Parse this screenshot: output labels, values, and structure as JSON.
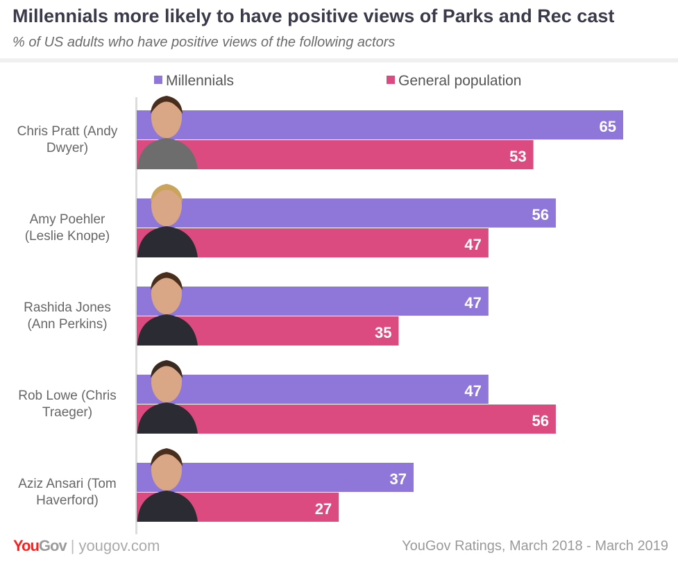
{
  "header": {
    "title": "Millennials more likely to have positive views of Parks and Rec cast",
    "subtitle": "% of US adults who have positive views of the following actors"
  },
  "footer": {
    "logo_you": "You",
    "logo_gov": "Gov",
    "url": "yougov.com",
    "source": "YouGov Ratings, March 2018 - March 2019"
  },
  "chart_data": {
    "type": "bar",
    "orientation": "horizontal",
    "title": "Millennials more likely to have positive views of Parks and Rec cast",
    "subtitle": "% of US adults who have positive views of the following actors",
    "categories": [
      "Chris Pratt (Andy Dwyer)",
      "Amy Poehler (Leslie Knope)",
      "Rashida Jones (Ann Perkins)",
      "Rob Lowe (Chris Traeger)",
      "Aziz Ansari (Tom Haverford)"
    ],
    "category_lines": [
      [
        "Chris Pratt (Andy",
        "Dwyer)"
      ],
      [
        "Amy Poehler",
        "(Leslie Knope)"
      ],
      [
        "Rashida Jones",
        "(Ann Perkins)"
      ],
      [
        "Rob Lowe (Chris",
        "Traeger)"
      ],
      [
        "Aziz Ansari (Tom",
        "Haverford)"
      ]
    ],
    "series": [
      {
        "name": "Millennials",
        "color": "#8e77d8",
        "values": [
          65,
          56,
          47,
          47,
          37
        ]
      },
      {
        "name": "General population",
        "color": "#dc4b80",
        "values": [
          53,
          47,
          35,
          56,
          27
        ]
      }
    ],
    "xlim": [
      0,
      65
    ],
    "legend": "top",
    "grid": false
  }
}
